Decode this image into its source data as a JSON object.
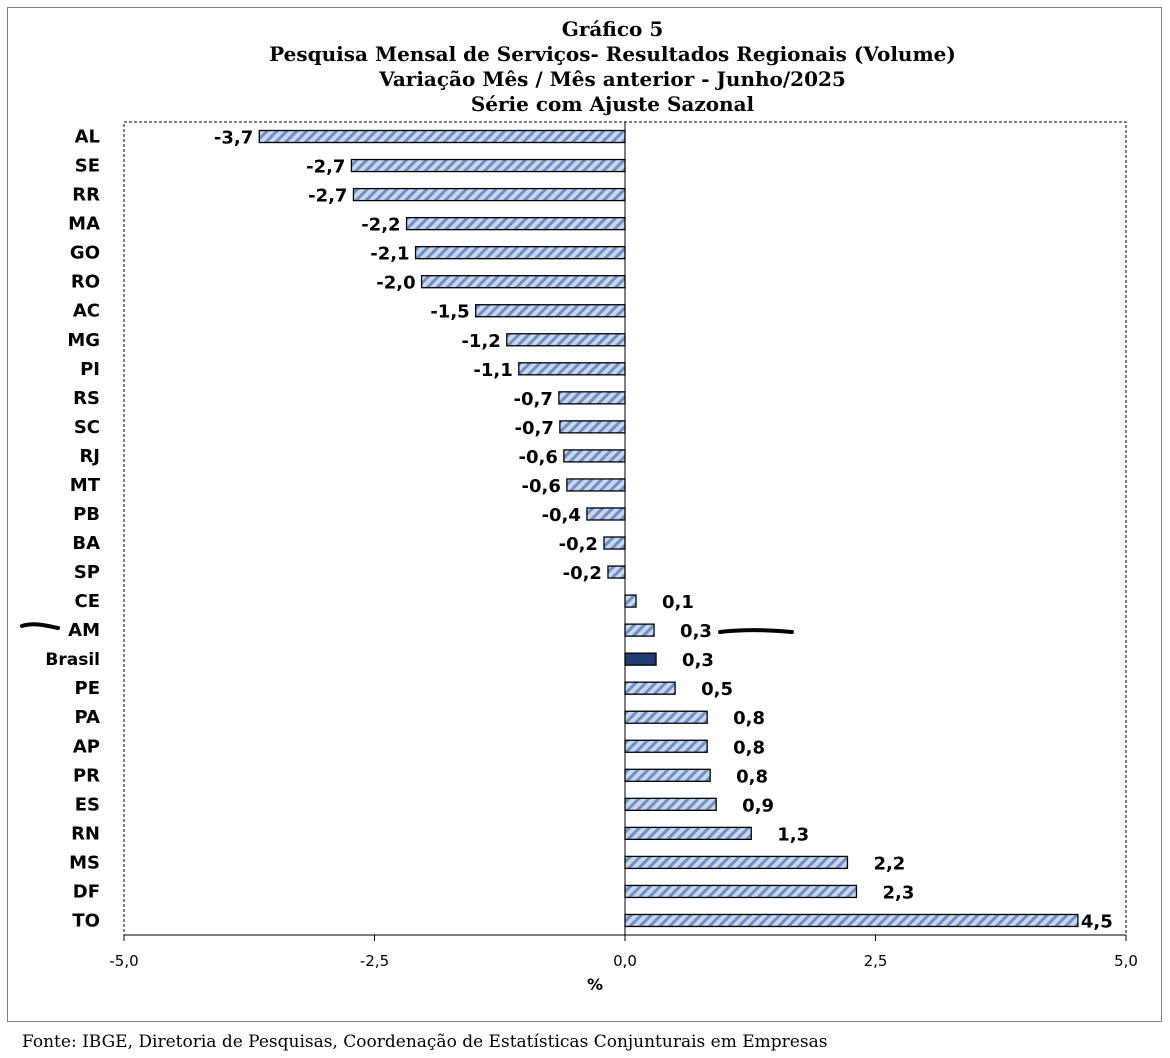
{
  "chart_data": {
    "type": "bar",
    "orientation": "horizontal",
    "title": "Gráfico 5",
    "subtitle": [
      "Pesquisa Mensal de Serviços- Resultados Regionais (Volume)",
      "Variação Mês / Mês anterior - Junho/2025",
      "Série com Ajuste Sazonal"
    ],
    "xlabel": "%",
    "ylabel": "",
    "xlim": [
      -5.0,
      5.0
    ],
    "xticks": [
      -5.0,
      -2.5,
      0.0,
      2.5,
      5.0
    ],
    "xtick_labels": [
      "-5,0",
      "-2,5",
      "0,0",
      "2,5",
      "5,0"
    ],
    "categories": [
      "AL",
      "SE",
      "RR",
      "MA",
      "GO",
      "RO",
      "AC",
      "MG",
      "PI",
      "RS",
      "SC",
      "RJ",
      "MT",
      "PB",
      "BA",
      "SP",
      "CE",
      "AM",
      "Brasil",
      "PE",
      "PA",
      "AP",
      "PR",
      "ES",
      "RN",
      "MS",
      "DF",
      "TO"
    ],
    "values": [
      -3.65,
      -2.73,
      -2.71,
      -2.18,
      -2.09,
      -2.03,
      -1.49,
      -1.18,
      -1.06,
      -0.66,
      -0.65,
      -0.61,
      -0.58,
      -0.38,
      -0.21,
      -0.17,
      0.11,
      0.29,
      0.31,
      0.5,
      0.82,
      0.82,
      0.85,
      0.91,
      1.26,
      2.22,
      2.31,
      4.52
    ],
    "data_labels": [
      "-3,7",
      "-2,7",
      "-2,7",
      "-2,2",
      "-2,1",
      "-2,0",
      "-1,5",
      "-1,2",
      "-1,1",
      "-0,7",
      "-0,7",
      "-0,6",
      "-0,6",
      "-0,4",
      "-0,2",
      "-0,2",
      "0,1",
      "0,3",
      "0,3",
      "0,5",
      "0,8",
      "0,8",
      "0,8",
      "0,9",
      "1,3",
      "2,2",
      "2,3",
      "4,5"
    ],
    "highlight_category": "Brasil",
    "colors": {
      "bar_fill": "#c9d6ec",
      "bar_hatch": "#6f8fc7",
      "highlight_fill": "#1f3d73",
      "bar_edge": "#000000"
    },
    "grid": false,
    "legend": "none"
  },
  "source": "Fonte: IBGE, Diretoria de Pesquisas, Coordenação de Estatísticas Conjunturais em Empresas"
}
